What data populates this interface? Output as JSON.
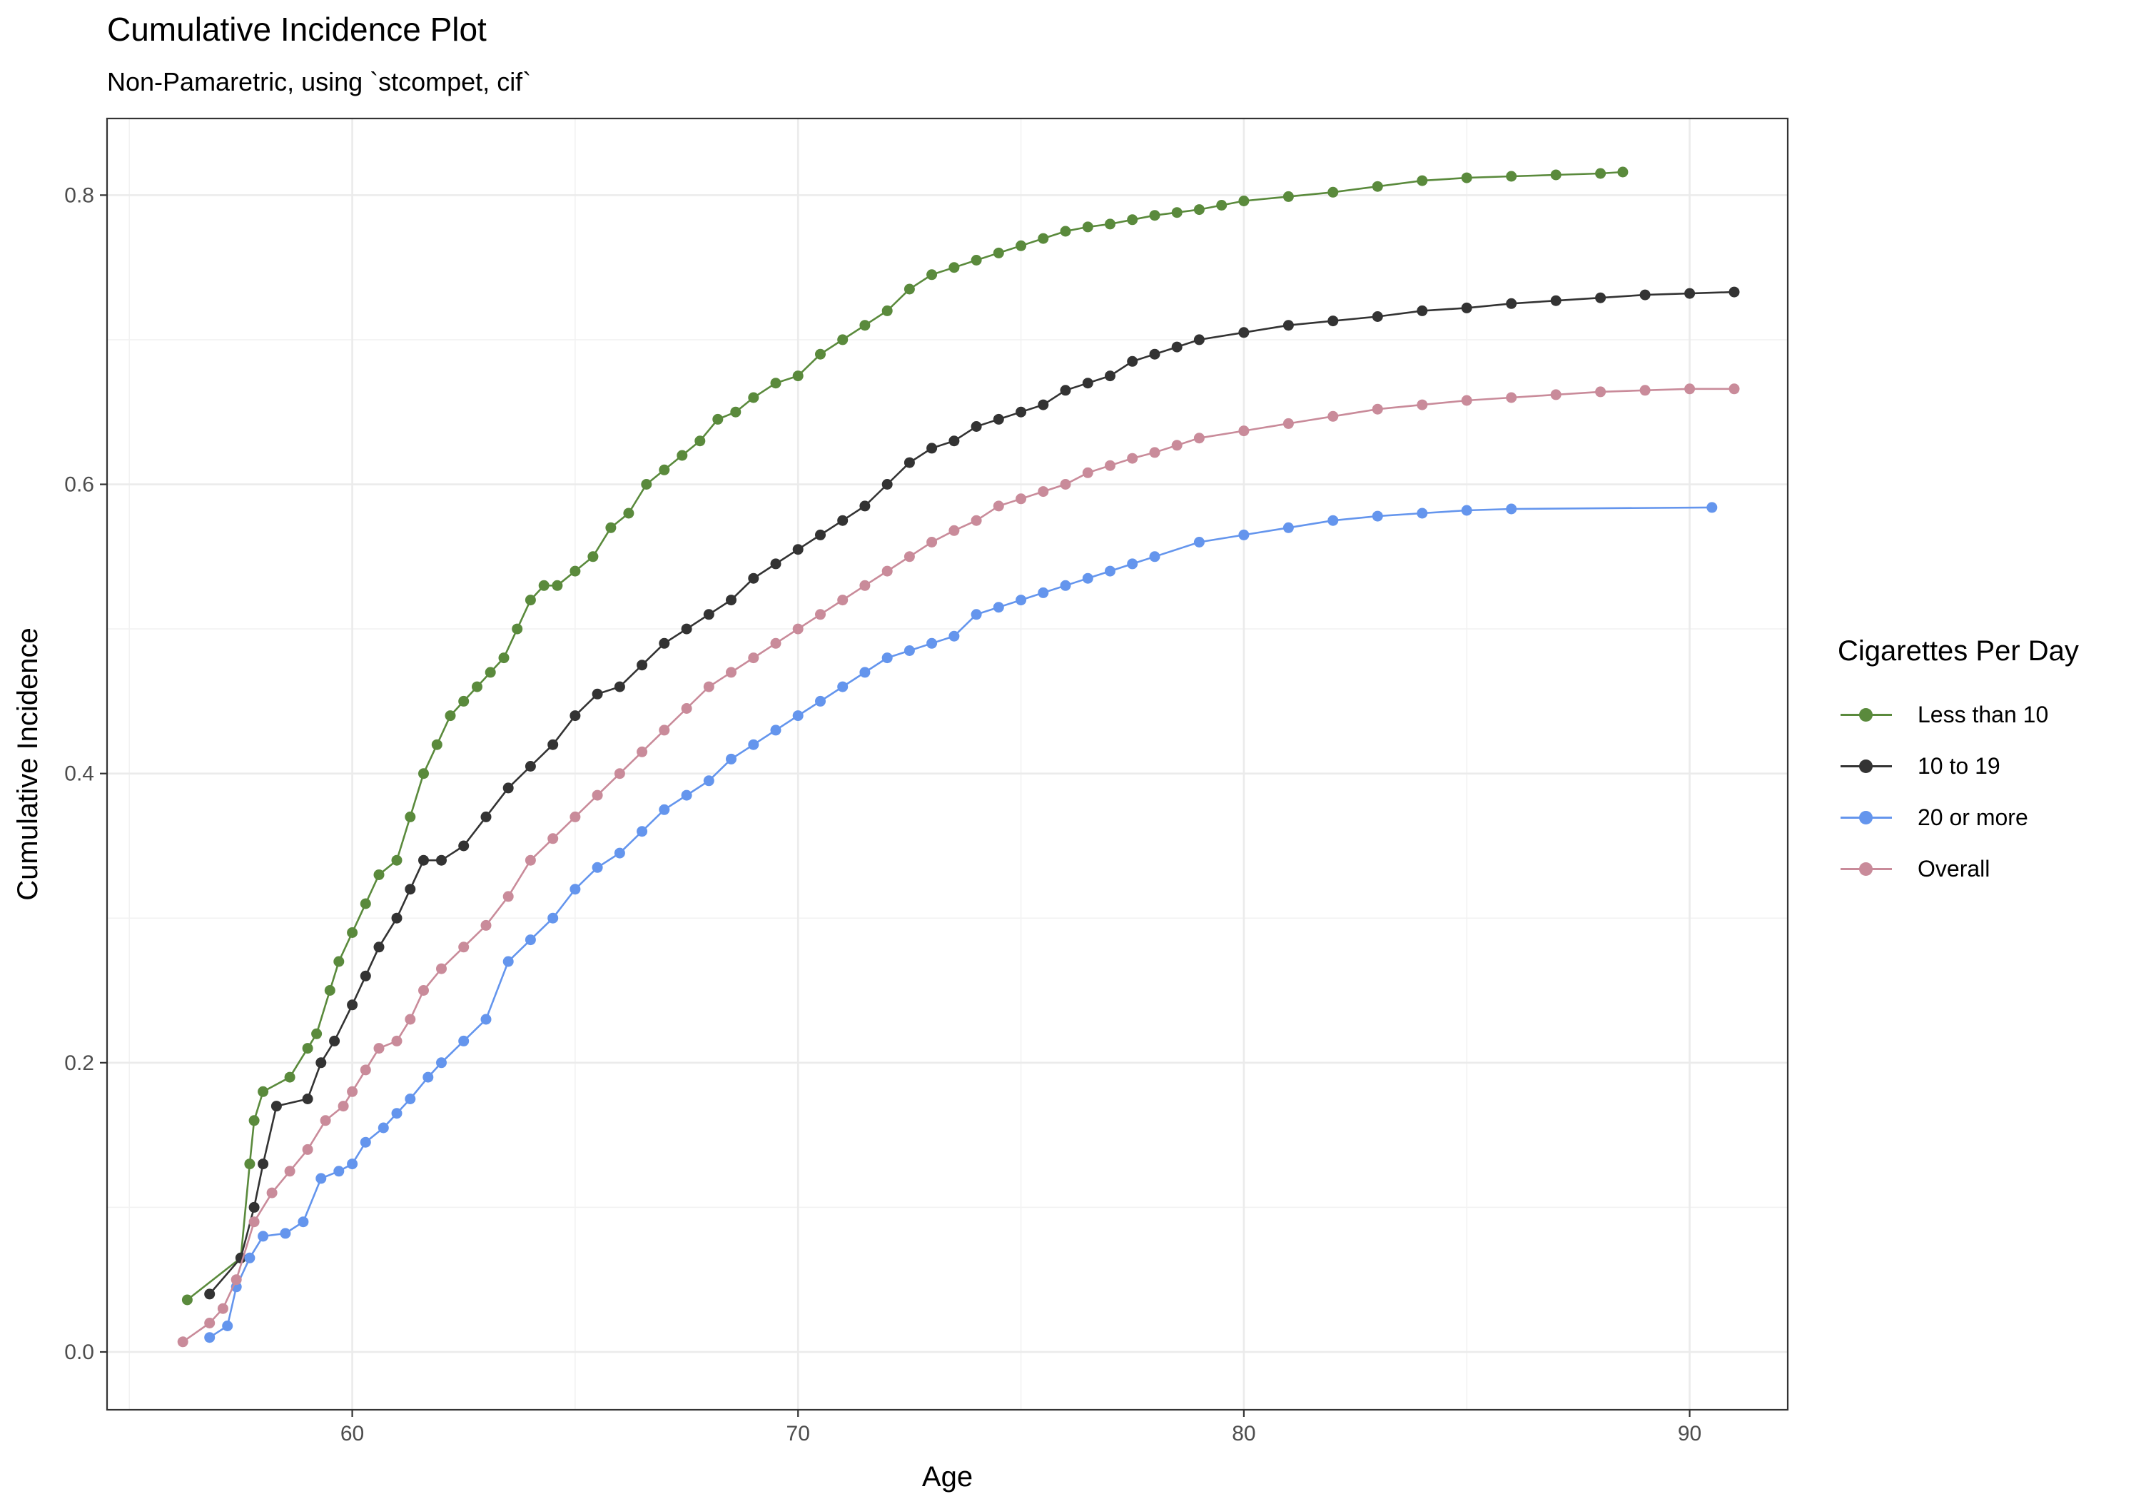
{
  "title": "Cumulative Incidence Plot",
  "subtitle": "Non-Pamaretric, using `stcompet, cif`",
  "chart_data": {
    "type": "line",
    "xlabel": "Age",
    "ylabel": "Cumulative Incidence",
    "xlim": [
      54.5,
      92.2
    ],
    "ylim": [
      -0.04,
      0.853
    ],
    "x_ticks": [
      60,
      70,
      80,
      90
    ],
    "y_ticks": [
      0.0,
      0.2,
      0.4,
      0.6,
      0.8
    ],
    "x_tick_labels": [
      "60",
      "70",
      "80",
      "90"
    ],
    "y_tick_labels": [
      "0.0",
      "0.2",
      "0.4",
      "0.6",
      "0.8"
    ],
    "grid": true,
    "markers": "points",
    "legend": {
      "title": "Cigarettes Per Day",
      "position": "right"
    },
    "series": [
      {
        "name": "Less than 10",
        "color": "#5a8a3c",
        "x": [
          56.3,
          57.5,
          57.7,
          57.8,
          58.0,
          58.6,
          59.0,
          59.2,
          59.5,
          59.7,
          60.0,
          60.3,
          60.6,
          61.0,
          61.3,
          61.6,
          61.9,
          62.2,
          62.5,
          62.8,
          63.1,
          63.4,
          63.7,
          64.0,
          64.3,
          64.6,
          65.0,
          65.4,
          65.8,
          66.2,
          66.6,
          67.0,
          67.4,
          67.8,
          68.2,
          68.6,
          69.0,
          69.5,
          70.0,
          70.5,
          71.0,
          71.5,
          72.0,
          72.5,
          73.0,
          73.5,
          74.0,
          74.5,
          75.0,
          75.5,
          76.0,
          76.5,
          77.0,
          77.5,
          78.0,
          78.5,
          79.0,
          79.5,
          80.0,
          81.0,
          82.0,
          83.0,
          84.0,
          85.0,
          86.0,
          87.0,
          88.0,
          88.5
        ],
        "y": [
          0.036,
          0.065,
          0.13,
          0.16,
          0.18,
          0.19,
          0.21,
          0.22,
          0.25,
          0.27,
          0.29,
          0.31,
          0.33,
          0.34,
          0.37,
          0.4,
          0.42,
          0.44,
          0.45,
          0.46,
          0.47,
          0.48,
          0.5,
          0.52,
          0.53,
          0.53,
          0.54,
          0.55,
          0.57,
          0.58,
          0.6,
          0.61,
          0.62,
          0.63,
          0.645,
          0.65,
          0.66,
          0.67,
          0.675,
          0.69,
          0.7,
          0.71,
          0.72,
          0.735,
          0.745,
          0.75,
          0.755,
          0.76,
          0.765,
          0.77,
          0.775,
          0.778,
          0.78,
          0.783,
          0.786,
          0.788,
          0.79,
          0.793,
          0.796,
          0.799,
          0.802,
          0.806,
          0.81,
          0.812,
          0.813,
          0.814,
          0.815,
          0.816
        ]
      },
      {
        "name": "10 to 19",
        "color": "#333333",
        "x": [
          56.8,
          57.5,
          57.8,
          58.0,
          58.3,
          59.0,
          59.3,
          59.6,
          60.0,
          60.3,
          60.6,
          61.0,
          61.3,
          61.6,
          62.0,
          62.5,
          63.0,
          63.5,
          64.0,
          64.5,
          65.0,
          65.5,
          66.0,
          66.5,
          67.0,
          67.5,
          68.0,
          68.5,
          69.0,
          69.5,
          70.0,
          70.5,
          71.0,
          71.5,
          72.0,
          72.5,
          73.0,
          73.5,
          74.0,
          74.5,
          75.0,
          75.5,
          76.0,
          76.5,
          77.0,
          77.5,
          78.0,
          78.5,
          79.0,
          80.0,
          81.0,
          82.0,
          83.0,
          84.0,
          85.0,
          86.0,
          87.0,
          88.0,
          89.0,
          90.0,
          91.0
        ],
        "y": [
          0.04,
          0.065,
          0.1,
          0.13,
          0.17,
          0.175,
          0.2,
          0.215,
          0.24,
          0.26,
          0.28,
          0.3,
          0.32,
          0.34,
          0.34,
          0.35,
          0.37,
          0.39,
          0.405,
          0.42,
          0.44,
          0.455,
          0.46,
          0.475,
          0.49,
          0.5,
          0.51,
          0.52,
          0.535,
          0.545,
          0.555,
          0.565,
          0.575,
          0.585,
          0.6,
          0.615,
          0.625,
          0.63,
          0.64,
          0.645,
          0.65,
          0.655,
          0.665,
          0.67,
          0.675,
          0.685,
          0.69,
          0.695,
          0.7,
          0.705,
          0.71,
          0.713,
          0.716,
          0.72,
          0.722,
          0.725,
          0.727,
          0.729,
          0.731,
          0.732,
          0.733
        ]
      },
      {
        "name": "20 or more",
        "color": "#6495ed",
        "x": [
          56.8,
          57.2,
          57.4,
          57.7,
          58.0,
          58.5,
          58.9,
          59.3,
          59.7,
          60.0,
          60.3,
          60.7,
          61.0,
          61.3,
          61.7,
          62.0,
          62.5,
          63.0,
          63.5,
          64.0,
          64.5,
          65.0,
          65.5,
          66.0,
          66.5,
          67.0,
          67.5,
          68.0,
          68.5,
          69.0,
          69.5,
          70.0,
          70.5,
          71.0,
          71.5,
          72.0,
          72.5,
          73.0,
          73.5,
          74.0,
          74.5,
          75.0,
          75.5,
          76.0,
          76.5,
          77.0,
          77.5,
          78.0,
          79.0,
          80.0,
          81.0,
          82.0,
          83.0,
          84.0,
          85.0,
          86.0,
          90.5
        ],
        "y": [
          0.01,
          0.018,
          0.045,
          0.065,
          0.08,
          0.082,
          0.09,
          0.12,
          0.125,
          0.13,
          0.145,
          0.155,
          0.165,
          0.175,
          0.19,
          0.2,
          0.215,
          0.23,
          0.27,
          0.285,
          0.3,
          0.32,
          0.335,
          0.345,
          0.36,
          0.375,
          0.385,
          0.395,
          0.41,
          0.42,
          0.43,
          0.44,
          0.45,
          0.46,
          0.47,
          0.48,
          0.485,
          0.49,
          0.495,
          0.51,
          0.515,
          0.52,
          0.525,
          0.53,
          0.535,
          0.54,
          0.545,
          0.55,
          0.56,
          0.565,
          0.57,
          0.575,
          0.578,
          0.58,
          0.582,
          0.583,
          0.584
        ]
      },
      {
        "name": "Overall",
        "color": "#c98b9a",
        "x": [
          56.2,
          56.8,
          57.1,
          57.4,
          57.8,
          58.2,
          58.6,
          59.0,
          59.4,
          59.8,
          60.0,
          60.3,
          60.6,
          61.0,
          61.3,
          61.6,
          62.0,
          62.5,
          63.0,
          63.5,
          64.0,
          64.5,
          65.0,
          65.5,
          66.0,
          66.5,
          67.0,
          67.5,
          68.0,
          68.5,
          69.0,
          69.5,
          70.0,
          70.5,
          71.0,
          71.5,
          72.0,
          72.5,
          73.0,
          73.5,
          74.0,
          74.5,
          75.0,
          75.5,
          76.0,
          76.5,
          77.0,
          77.5,
          78.0,
          78.5,
          79.0,
          80.0,
          81.0,
          82.0,
          83.0,
          84.0,
          85.0,
          86.0,
          87.0,
          88.0,
          89.0,
          90.0,
          91.0
        ],
        "y": [
          0.007,
          0.02,
          0.03,
          0.05,
          0.09,
          0.11,
          0.125,
          0.14,
          0.16,
          0.17,
          0.18,
          0.195,
          0.21,
          0.215,
          0.23,
          0.25,
          0.265,
          0.28,
          0.295,
          0.315,
          0.34,
          0.355,
          0.37,
          0.385,
          0.4,
          0.415,
          0.43,
          0.445,
          0.46,
          0.47,
          0.48,
          0.49,
          0.5,
          0.51,
          0.52,
          0.53,
          0.54,
          0.55,
          0.56,
          0.568,
          0.575,
          0.585,
          0.59,
          0.595,
          0.6,
          0.608,
          0.613,
          0.618,
          0.622,
          0.627,
          0.632,
          0.637,
          0.642,
          0.647,
          0.652,
          0.655,
          0.658,
          0.66,
          0.662,
          0.664,
          0.665,
          0.666,
          0.666
        ]
      }
    ]
  }
}
